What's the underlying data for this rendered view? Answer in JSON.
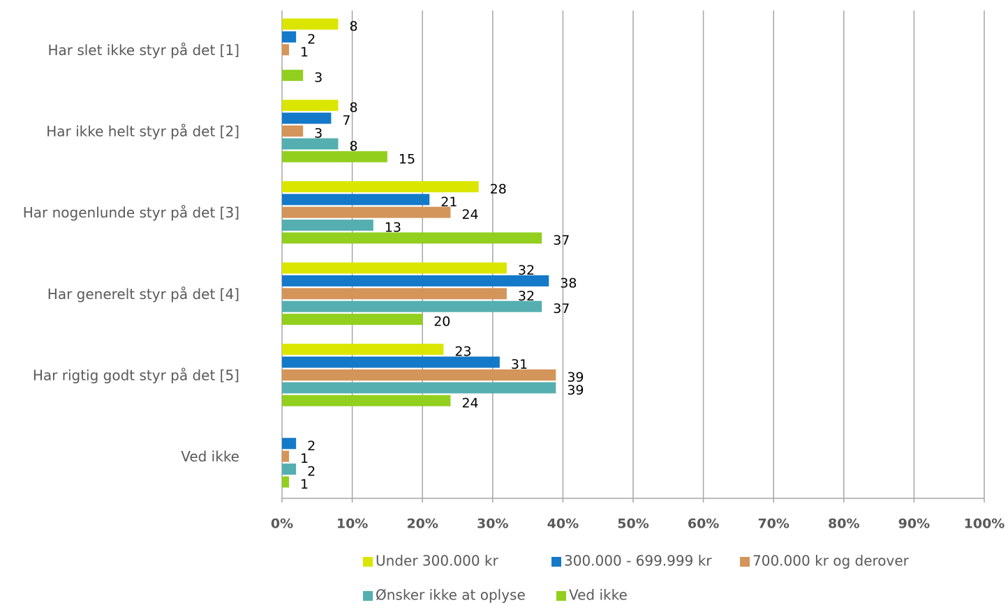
{
  "chart_data": {
    "type": "bar",
    "orientation": "horizontal",
    "categories": [
      "Har slet ikke styr på det [1]",
      "Har ikke helt styr på det [2]",
      "Har nogenlunde styr på det [3]",
      "Har generelt styr på det [4]",
      "Har rigtig godt styr på det [5]",
      "Ved ikke"
    ],
    "series": [
      {
        "name": "Under 300.000 kr",
        "color": "#dbe600",
        "values": [
          8,
          8,
          28,
          32,
          23,
          null
        ]
      },
      {
        "name": "300.000 - 699.999 kr",
        "color": "#1479c8",
        "values": [
          2,
          7,
          21,
          38,
          31,
          2
        ]
      },
      {
        "name": "700.000 kr og derover",
        "color": "#d4955a",
        "values": [
          1,
          3,
          24,
          32,
          39,
          1
        ]
      },
      {
        "name": "Ønsker ikke at oplyse",
        "color": "#55afb0",
        "values": [
          null,
          8,
          13,
          37,
          39,
          2
        ]
      },
      {
        "name": "Ved ikke",
        "color": "#92cf1e",
        "values": [
          3,
          15,
          37,
          20,
          24,
          1
        ]
      }
    ],
    "xlim": [
      0,
      100
    ],
    "xticks": [
      {
        "value": 0,
        "label": "0%"
      },
      {
        "value": 10,
        "label": "10%"
      },
      {
        "value": 20,
        "label": "20%"
      },
      {
        "value": 30,
        "label": "30%"
      },
      {
        "value": 40,
        "label": "40%"
      },
      {
        "value": 50,
        "label": "50%"
      },
      {
        "value": 60,
        "label": "60%"
      },
      {
        "value": 70,
        "label": "70%"
      },
      {
        "value": 80,
        "label": "80%"
      },
      {
        "value": 90,
        "label": "90%"
      },
      {
        "value": 100,
        "label": "100%"
      }
    ],
    "grid": true,
    "legend": "bottom"
  }
}
